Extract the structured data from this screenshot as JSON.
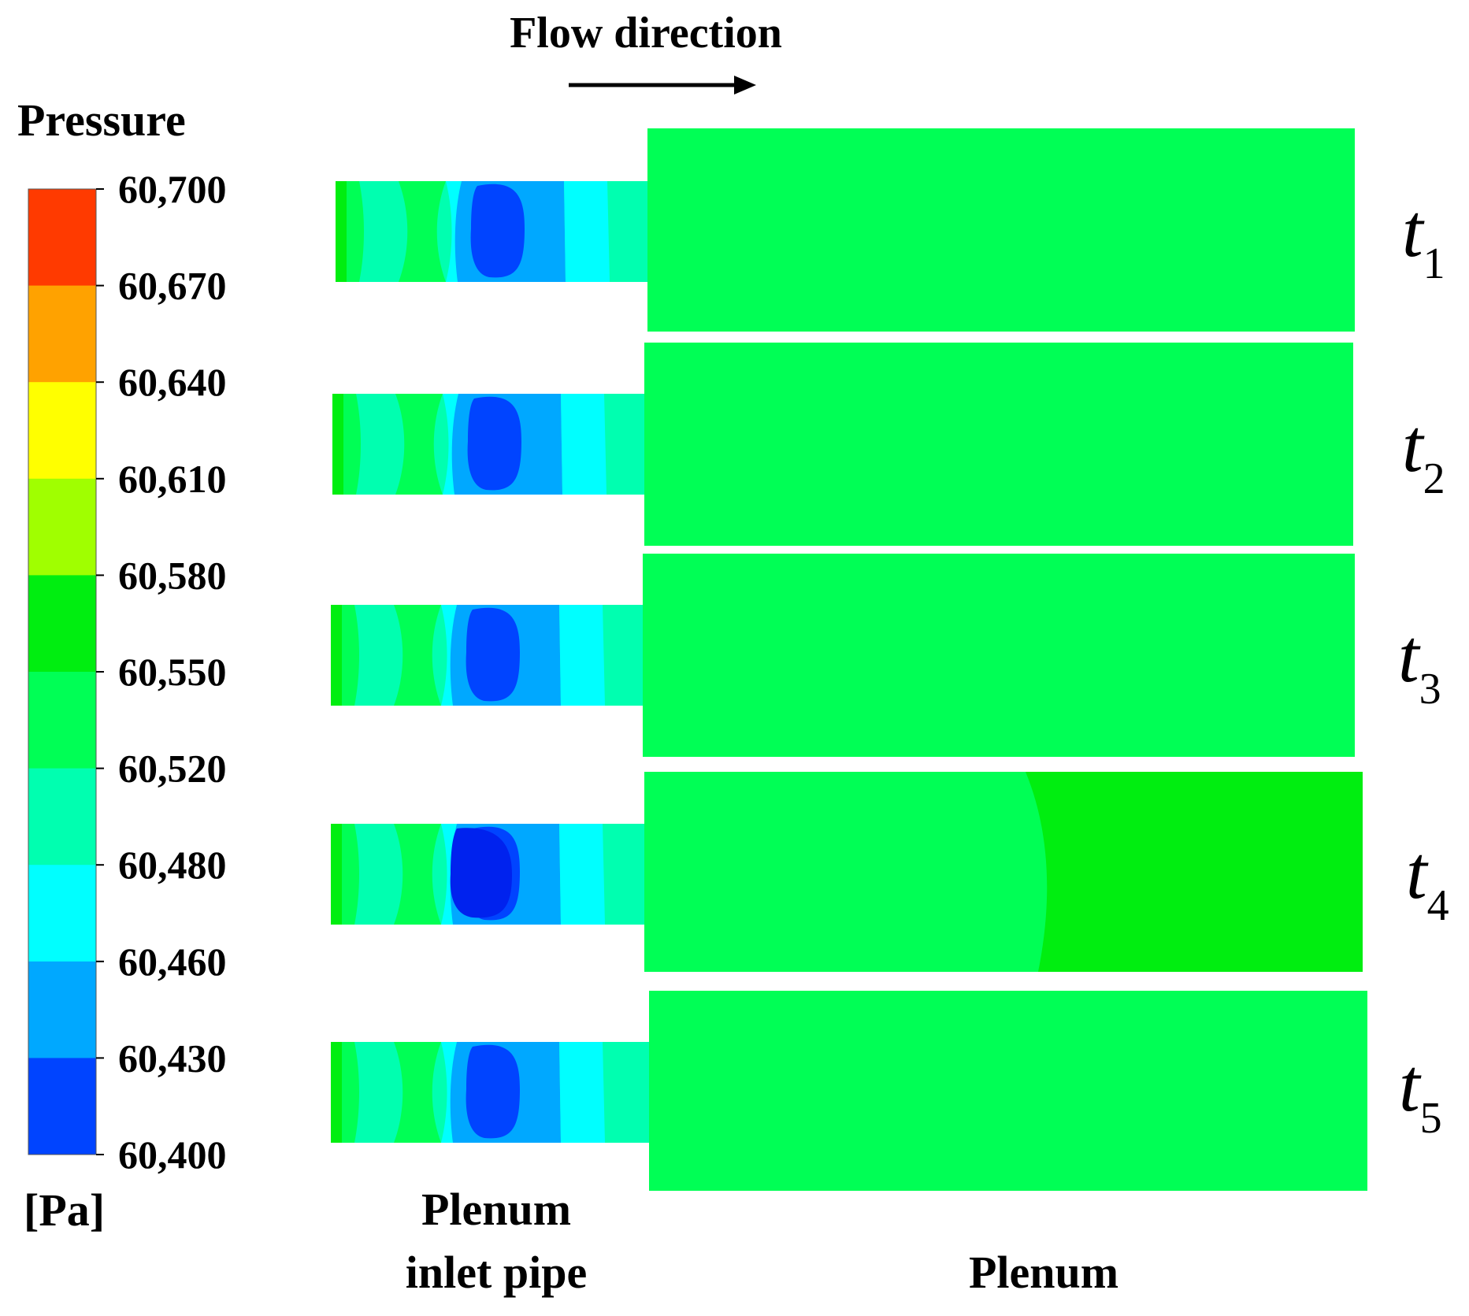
{
  "header": {
    "flow_label": "Flow direction"
  },
  "legend": {
    "title": "Pressure",
    "unit": "[Pa]",
    "ticks": [
      "60,700",
      "60,670",
      "60,640",
      "60,610",
      "60,580",
      "60,550",
      "60,520",
      "60,480",
      "60,460",
      "60,430",
      "60,400"
    ],
    "colors": [
      "#ff3a00",
      "#ffa200",
      "#ffff00",
      "#a0ff00",
      "#00ee10",
      "#00ff55",
      "#00ffb0",
      "#00ffff",
      "#00a8ff",
      "#0044ff"
    ]
  },
  "snapshots": [
    {
      "label": "t",
      "sub": "1"
    },
    {
      "label": "t",
      "sub": "2"
    },
    {
      "label": "t",
      "sub": "3"
    },
    {
      "label": "t",
      "sub": "4"
    },
    {
      "label": "t",
      "sub": "5"
    }
  ],
  "regions": {
    "inlet_label_line1": "Plenum",
    "inlet_label_line2": "inlet pipe",
    "plenum_label": "Plenum"
  }
}
